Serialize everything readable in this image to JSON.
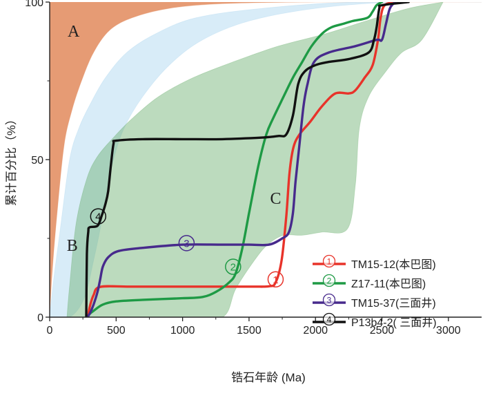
{
  "chart_data": {
    "type": "line",
    "title": "",
    "xlabel": "锆石年龄 (Ma)",
    "ylabel": "累计百分比（%）",
    "xlim": [
      0,
      3250
    ],
    "ylim": [
      0,
      100
    ],
    "x_ticks": [
      0,
      500,
      1000,
      1500,
      2000,
      2500,
      3000
    ],
    "y_ticks": [
      0,
      50,
      100
    ],
    "fields": [
      {
        "name": "A",
        "color": "#e28a5c",
        "opacity": 0.85,
        "label_at": [
          180,
          89
        ],
        "upper": [
          [
            0,
            100
          ],
          [
            3250,
            100
          ]
        ],
        "lower": [
          [
            0,
            0
          ],
          [
            20,
            15
          ],
          [
            60,
            35
          ],
          [
            110,
            55
          ],
          [
            170,
            66
          ],
          [
            240,
            75
          ],
          [
            330,
            84
          ],
          [
            450,
            91
          ],
          [
            620,
            95
          ],
          [
            900,
            98
          ],
          [
            1300,
            99.5
          ],
          [
            2000,
            100
          ],
          [
            3250,
            100
          ]
        ]
      },
      {
        "name": "B",
        "color": "#a9d4ef",
        "opacity": 0.45,
        "label_at": [
          170,
          21
        ],
        "upper": [
          [
            0,
            0
          ],
          [
            30,
            12
          ],
          [
            80,
            28
          ],
          [
            150,
            50
          ],
          [
            220,
            60
          ],
          [
            310,
            68
          ],
          [
            420,
            76
          ],
          [
            580,
            84
          ],
          [
            800,
            90
          ],
          [
            1100,
            95
          ],
          [
            1600,
            98
          ],
          [
            2300,
            100
          ],
          [
            3250,
            100
          ]
        ],
        "lower": [
          [
            0,
            0
          ],
          [
            150,
            0
          ],
          [
            260,
            6
          ],
          [
            330,
            18
          ],
          [
            380,
            28
          ],
          [
            430,
            40
          ],
          [
            480,
            50
          ],
          [
            560,
            60
          ],
          [
            700,
            70
          ],
          [
            900,
            80
          ],
          [
            1150,
            88
          ],
          [
            1500,
            94
          ],
          [
            2000,
            98
          ],
          [
            2600,
            100
          ],
          [
            3250,
            100
          ]
        ]
      },
      {
        "name": "C",
        "color": "#6aaf6e",
        "opacity": 0.45,
        "label_at": [
          1700,
          36
        ],
        "upper": [
          [
            130,
            0
          ],
          [
            150,
            10
          ],
          [
            200,
            30
          ],
          [
            280,
            44
          ],
          [
            360,
            51
          ],
          [
            480,
            57
          ],
          [
            620,
            63
          ],
          [
            820,
            70
          ],
          [
            1080,
            76
          ],
          [
            1380,
            81
          ],
          [
            1720,
            86
          ],
          [
            2080,
            90
          ],
          [
            2380,
            94
          ],
          [
            2700,
            98
          ],
          [
            2960,
            100
          ]
        ],
        "lower": [
          [
            130,
            0
          ],
          [
            600,
            0
          ],
          [
            1000,
            0
          ],
          [
            1300,
            0
          ],
          [
            1400,
            9
          ],
          [
            1540,
            18
          ],
          [
            1640,
            23
          ],
          [
            1760,
            26
          ],
          [
            1900,
            26
          ],
          [
            2050,
            27
          ],
          [
            2240,
            28
          ],
          [
            2300,
            42
          ],
          [
            2330,
            60
          ],
          [
            2400,
            70
          ],
          [
            2530,
            78
          ],
          [
            2650,
            84
          ],
          [
            2800,
            88
          ],
          [
            2960,
            100
          ]
        ]
      }
    ],
    "series": [
      {
        "name": "TM15-12(本巴图)",
        "marker": "①",
        "color": "#e8332a",
        "marker_at": [
          1700,
          12
        ],
        "points": [
          [
            290,
            0
          ],
          [
            300,
            3
          ],
          [
            330,
            7
          ],
          [
            380,
            9.6
          ],
          [
            600,
            9.7
          ],
          [
            1000,
            9.7
          ],
          [
            1500,
            9.7
          ],
          [
            1650,
            9.8
          ],
          [
            1700,
            11
          ],
          [
            1745,
            18
          ],
          [
            1780,
            32
          ],
          [
            1805,
            46
          ],
          [
            1835,
            54
          ],
          [
            1880,
            58
          ],
          [
            1960,
            62
          ],
          [
            2050,
            67
          ],
          [
            2150,
            71
          ],
          [
            2250,
            71
          ],
          [
            2300,
            72
          ],
          [
            2370,
            76
          ],
          [
            2430,
            80
          ],
          [
            2470,
            88
          ],
          [
            2490,
            95
          ],
          [
            2520,
            99
          ],
          [
            2600,
            100
          ]
        ]
      },
      {
        "name": "Z17-11(本巴图)",
        "marker": "②",
        "color": "#1e9a45",
        "marker_at": [
          1380,
          16
        ],
        "points": [
          [
            285,
            0
          ],
          [
            300,
            1
          ],
          [
            330,
            2
          ],
          [
            400,
            4
          ],
          [
            500,
            5
          ],
          [
            700,
            5.5
          ],
          [
            1000,
            6
          ],
          [
            1150,
            6.4
          ],
          [
            1250,
            8
          ],
          [
            1350,
            11
          ],
          [
            1400,
            14
          ],
          [
            1450,
            22
          ],
          [
            1500,
            33
          ],
          [
            1570,
            48
          ],
          [
            1630,
            58
          ],
          [
            1680,
            63
          ],
          [
            1760,
            70
          ],
          [
            1830,
            76
          ],
          [
            1900,
            81
          ],
          [
            1970,
            86
          ],
          [
            2050,
            90
          ],
          [
            2120,
            92
          ],
          [
            2200,
            93
          ],
          [
            2280,
            94
          ],
          [
            2390,
            95
          ],
          [
            2430,
            97
          ],
          [
            2460,
            99
          ],
          [
            2500,
            100
          ]
        ]
      },
      {
        "name": "TM15-37(三面井)",
        "marker": "③",
        "color": "#472a8c",
        "marker_at": [
          1030,
          23.5
        ],
        "points": [
          [
            280,
            0
          ],
          [
            300,
            1
          ],
          [
            330,
            4
          ],
          [
            360,
            8
          ],
          [
            380,
            12
          ],
          [
            400,
            16
          ],
          [
            440,
            19
          ],
          [
            520,
            21
          ],
          [
            700,
            22
          ],
          [
            1000,
            23
          ],
          [
            1300,
            23
          ],
          [
            1500,
            23
          ],
          [
            1650,
            23
          ],
          [
            1750,
            25
          ],
          [
            1800,
            27
          ],
          [
            1830,
            33
          ],
          [
            1850,
            43
          ],
          [
            1880,
            55
          ],
          [
            1910,
            67
          ],
          [
            1940,
            74
          ],
          [
            1990,
            81
          ],
          [
            2100,
            84
          ],
          [
            2300,
            86
          ],
          [
            2460,
            88
          ],
          [
            2500,
            88
          ],
          [
            2530,
            93
          ],
          [
            2560,
            98
          ],
          [
            2600,
            100
          ]
        ]
      },
      {
        "name": "P13b4-2( 三面井)",
        "marker": "④",
        "color": "#111111",
        "marker_at": [
          365,
          32
        ],
        "points": [
          [
            275,
            0
          ],
          [
            280,
            20
          ],
          [
            290,
            27
          ],
          [
            300,
            28.5
          ],
          [
            360,
            29
          ],
          [
            390,
            32
          ],
          [
            420,
            36
          ],
          [
            440,
            40
          ],
          [
            460,
            48
          ],
          [
            480,
            55
          ],
          [
            500,
            56
          ],
          [
            700,
            56.5
          ],
          [
            1000,
            56.5
          ],
          [
            1300,
            56.5
          ],
          [
            1600,
            57
          ],
          [
            1720,
            57.5
          ],
          [
            1780,
            58
          ],
          [
            1830,
            64
          ],
          [
            1870,
            74
          ],
          [
            1920,
            78
          ],
          [
            2000,
            80
          ],
          [
            2100,
            81
          ],
          [
            2260,
            82
          ],
          [
            2400,
            84
          ],
          [
            2440,
            88
          ],
          [
            2460,
            92
          ],
          [
            2480,
            98
          ],
          [
            2500,
            99
          ],
          [
            2700,
            100
          ]
        ]
      }
    ],
    "legend_position": "bottom-right"
  }
}
